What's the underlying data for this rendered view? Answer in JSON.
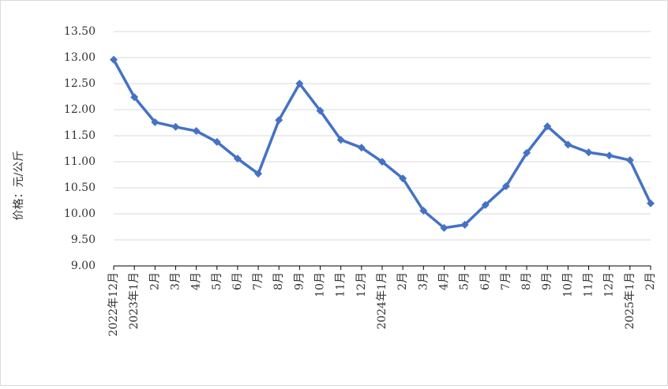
{
  "chart_data": {
    "type": "line",
    "y_label": "价格：元/公斤",
    "categories": [
      "2022年12月",
      "2023年1月",
      "2月",
      "3月",
      "4月",
      "5月",
      "6月",
      "7月",
      "8月",
      "9月",
      "10月",
      "11月",
      "12月",
      "2024年1月",
      "2月",
      "3月",
      "4月",
      "5月",
      "6月",
      "7月",
      "8月",
      "9月",
      "10月",
      "11月",
      "12月",
      "2025年1月",
      "2月"
    ],
    "series": [
      {
        "color": "#4472c4",
        "values": [
          12.96,
          12.24,
          11.76,
          11.67,
          11.59,
          11.38,
          11.06,
          10.77,
          11.8,
          12.5,
          11.98,
          11.42,
          11.27,
          11.0,
          10.68,
          10.06,
          9.73,
          9.79,
          10.17,
          10.53,
          11.17,
          11.68,
          11.33,
          11.18,
          11.12,
          11.03,
          10.2
        ]
      }
    ],
    "ylim": [
      9,
      13.5
    ],
    "yticks": [
      {
        "value": 9,
        "label": "9.00"
      },
      {
        "value": 9.5,
        "label": "9.50"
      },
      {
        "value": 10,
        "label": "10.00"
      },
      {
        "value": 10.5,
        "label": "10.50"
      },
      {
        "value": 11,
        "label": "11.00"
      },
      {
        "value": 11.5,
        "label": "11.50"
      },
      {
        "value": 12,
        "label": "12.00"
      },
      {
        "value": 12.5,
        "label": "12.50"
      },
      {
        "value": 13,
        "label": "13.00"
      },
      {
        "value": 13.5,
        "label": "13.50"
      }
    ],
    "grid": true
  }
}
